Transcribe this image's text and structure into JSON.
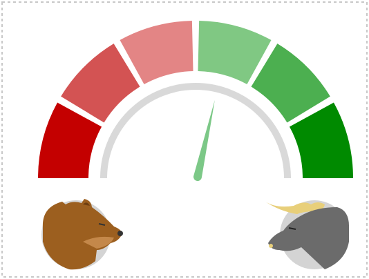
{
  "chart_data": {
    "type": "gauge",
    "value": 57,
    "ylim": [
      0,
      100
    ],
    "segment_colors": [
      "#c40000",
      "#d35353",
      "#e38585",
      "#80c883",
      "#4caf50",
      "#008a00"
    ],
    "needle_color": "#7cc887",
    "track_color": "#d9d9d9"
  }
}
